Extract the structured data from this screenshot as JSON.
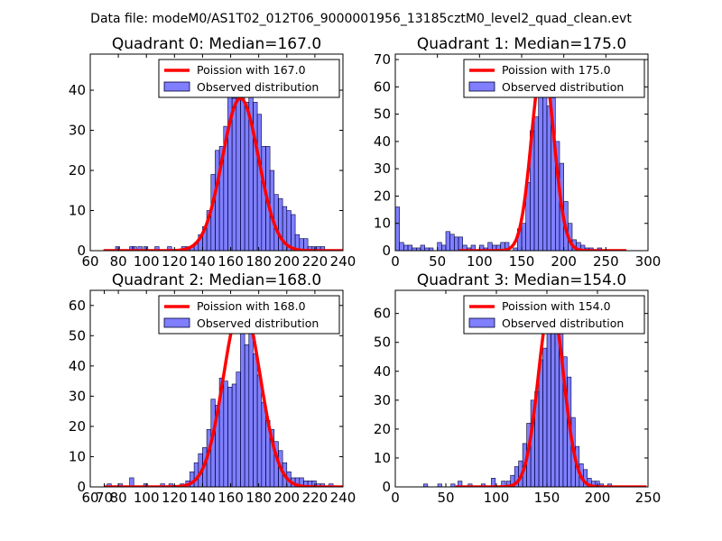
{
  "figure": {
    "suptitle": "Data file: modeM0/AS1T02_012T06_9000001956_13185cztM0_level2_quad_clean.evt"
  },
  "chart_data": [
    {
      "type": "histogram+line",
      "title": "Quadrant 0: Median=167.0",
      "xlim": [
        60,
        240
      ],
      "ylim": [
        0,
        49
      ],
      "xticks": [
        60,
        80,
        100,
        120,
        140,
        160,
        180,
        200,
        220,
        240
      ],
      "yticks": [
        0,
        10,
        20,
        30,
        40
      ],
      "legend_position": "top-right",
      "legend": [
        "Poission with 167.0",
        "Observed distribution"
      ],
      "poisson_mean": 167.0,
      "poisson_peak": 38,
      "bin_width": 3,
      "histogram": [
        [
          78,
          1
        ],
        [
          88,
          1
        ],
        [
          90,
          1
        ],
        [
          94,
          1
        ],
        [
          98,
          1
        ],
        [
          106,
          1
        ],
        [
          115,
          1
        ],
        [
          125,
          1
        ],
        [
          128,
          1
        ],
        [
          131,
          1
        ],
        [
          134,
          2
        ],
        [
          137,
          4
        ],
        [
          140,
          6
        ],
        [
          143,
          10
        ],
        [
          146,
          19
        ],
        [
          149,
          25
        ],
        [
          152,
          26
        ],
        [
          155,
          31
        ],
        [
          158,
          39
        ],
        [
          161,
          38
        ],
        [
          164,
          43
        ],
        [
          167,
          39
        ],
        [
          170,
          37
        ],
        [
          173,
          40
        ],
        [
          176,
          37
        ],
        [
          179,
          34
        ],
        [
          182,
          26
        ],
        [
          185,
          26
        ],
        [
          188,
          20
        ],
        [
          191,
          14
        ],
        [
          194,
          13
        ],
        [
          197,
          11
        ],
        [
          200,
          10
        ],
        [
          203,
          9
        ],
        [
          206,
          4
        ],
        [
          209,
          3
        ],
        [
          212,
          3
        ],
        [
          215,
          1
        ],
        [
          218,
          1
        ],
        [
          221,
          1
        ],
        [
          224,
          1
        ]
      ]
    },
    {
      "type": "histogram+line",
      "title": "Quadrant 1: Median=175.0",
      "xlim": [
        0,
        300
      ],
      "ylim": [
        0,
        72
      ],
      "xticks": [
        0,
        50,
        100,
        150,
        200,
        250,
        300
      ],
      "yticks": [
        0,
        10,
        20,
        30,
        40,
        50,
        60,
        70
      ],
      "legend_position": "top-right",
      "legend": [
        "Poission with 175.0",
        "Observed distribution"
      ],
      "poisson_mean": 175.0,
      "poisson_peak": 69,
      "bin_width": 5,
      "histogram": [
        [
          0,
          16
        ],
        [
          5,
          3
        ],
        [
          10,
          2
        ],
        [
          15,
          2
        ],
        [
          20,
          1
        ],
        [
          25,
          1
        ],
        [
          30,
          2
        ],
        [
          35,
          1
        ],
        [
          40,
          1
        ],
        [
          50,
          3
        ],
        [
          55,
          2
        ],
        [
          60,
          7
        ],
        [
          65,
          6
        ],
        [
          70,
          5
        ],
        [
          75,
          5
        ],
        [
          80,
          2
        ],
        [
          85,
          1
        ],
        [
          90,
          2
        ],
        [
          100,
          2
        ],
        [
          105,
          1
        ],
        [
          110,
          3
        ],
        [
          115,
          2
        ],
        [
          120,
          2
        ],
        [
          125,
          3
        ],
        [
          130,
          3
        ],
        [
          140,
          1
        ],
        [
          145,
          8
        ],
        [
          150,
          10
        ],
        [
          155,
          25
        ],
        [
          160,
          44
        ],
        [
          165,
          49
        ],
        [
          170,
          58
        ],
        [
          175,
          62
        ],
        [
          180,
          53
        ],
        [
          185,
          56
        ],
        [
          190,
          40
        ],
        [
          195,
          32
        ],
        [
          200,
          18
        ],
        [
          205,
          10
        ],
        [
          210,
          4
        ],
        [
          215,
          3
        ],
        [
          220,
          2
        ],
        [
          225,
          1
        ],
        [
          230,
          1
        ],
        [
          240,
          1
        ]
      ]
    },
    {
      "type": "histogram+line",
      "title": "Quadrant 2: Median=168.0",
      "xlim": [
        60,
        240
      ],
      "ylim": [
        0,
        65
      ],
      "xticks": [
        60,
        70,
        80,
        100,
        120,
        140,
        160,
        180,
        200,
        220,
        240
      ],
      "tick_labels": [
        "60",
        "70",
        "80",
        "100",
        "120",
        "140",
        "160",
        "180",
        "200",
        "220",
        "240"
      ],
      "yticks": [
        0,
        10,
        20,
        30,
        40,
        50,
        60
      ],
      "legend_position": "top-right",
      "legend": [
        "Poission with 168.0",
        "Observed distribution"
      ],
      "poisson_mean": 168.0,
      "poisson_peak": 61,
      "bin_width": 3,
      "histogram": [
        [
          72,
          1
        ],
        [
          80,
          1
        ],
        [
          88,
          3
        ],
        [
          98,
          1
        ],
        [
          110,
          1
        ],
        [
          116,
          1
        ],
        [
          124,
          1
        ],
        [
          128,
          2
        ],
        [
          131,
          5
        ],
        [
          134,
          8
        ],
        [
          137,
          11
        ],
        [
          140,
          13
        ],
        [
          143,
          19
        ],
        [
          146,
          29
        ],
        [
          149,
          27
        ],
        [
          152,
          36
        ],
        [
          155,
          35
        ],
        [
          158,
          33
        ],
        [
          161,
          34
        ],
        [
          164,
          38
        ],
        [
          167,
          61
        ],
        [
          170,
          47
        ],
        [
          173,
          52
        ],
        [
          176,
          44
        ],
        [
          179,
          37
        ],
        [
          182,
          28
        ],
        [
          185,
          22
        ],
        [
          188,
          19
        ],
        [
          191,
          15
        ],
        [
          194,
          12
        ],
        [
          197,
          8
        ],
        [
          200,
          5
        ],
        [
          203,
          3
        ],
        [
          206,
          3
        ],
        [
          209,
          3
        ],
        [
          212,
          2
        ],
        [
          215,
          2
        ],
        [
          218,
          2
        ],
        [
          221,
          1
        ],
        [
          224,
          1
        ],
        [
          230,
          1
        ]
      ]
    },
    {
      "type": "histogram+line",
      "title": "Quadrant 3: Median=154.0",
      "xlim": [
        0,
        250
      ],
      "ylim": [
        0,
        68
      ],
      "xticks": [
        0,
        50,
        100,
        150,
        200,
        250
      ],
      "yticks": [
        0,
        10,
        20,
        30,
        40,
        50,
        60
      ],
      "legend_position": "top-right",
      "legend": [
        "Poission with 154.0",
        "Observed distribution"
      ],
      "poisson_mean": 154.0,
      "poisson_peak": 64,
      "bin_width": 4,
      "histogram": [
        [
          28,
          1
        ],
        [
          42,
          1
        ],
        [
          55,
          1
        ],
        [
          62,
          2
        ],
        [
          72,
          1
        ],
        [
          85,
          1
        ],
        [
          95,
          3
        ],
        [
          105,
          2
        ],
        [
          110,
          2
        ],
        [
          114,
          4
        ],
        [
          118,
          7
        ],
        [
          122,
          9
        ],
        [
          126,
          15
        ],
        [
          130,
          22
        ],
        [
          134,
          30
        ],
        [
          138,
          33
        ],
        [
          142,
          44
        ],
        [
          146,
          48
        ],
        [
          150,
          55
        ],
        [
          154,
          64
        ],
        [
          158,
          57
        ],
        [
          162,
          62
        ],
        [
          166,
          45
        ],
        [
          170,
          38
        ],
        [
          174,
          24
        ],
        [
          178,
          14
        ],
        [
          182,
          8
        ],
        [
          186,
          6
        ],
        [
          190,
          3
        ],
        [
          194,
          2
        ],
        [
          198,
          2
        ],
        [
          202,
          1
        ],
        [
          210,
          1
        ]
      ]
    }
  ]
}
